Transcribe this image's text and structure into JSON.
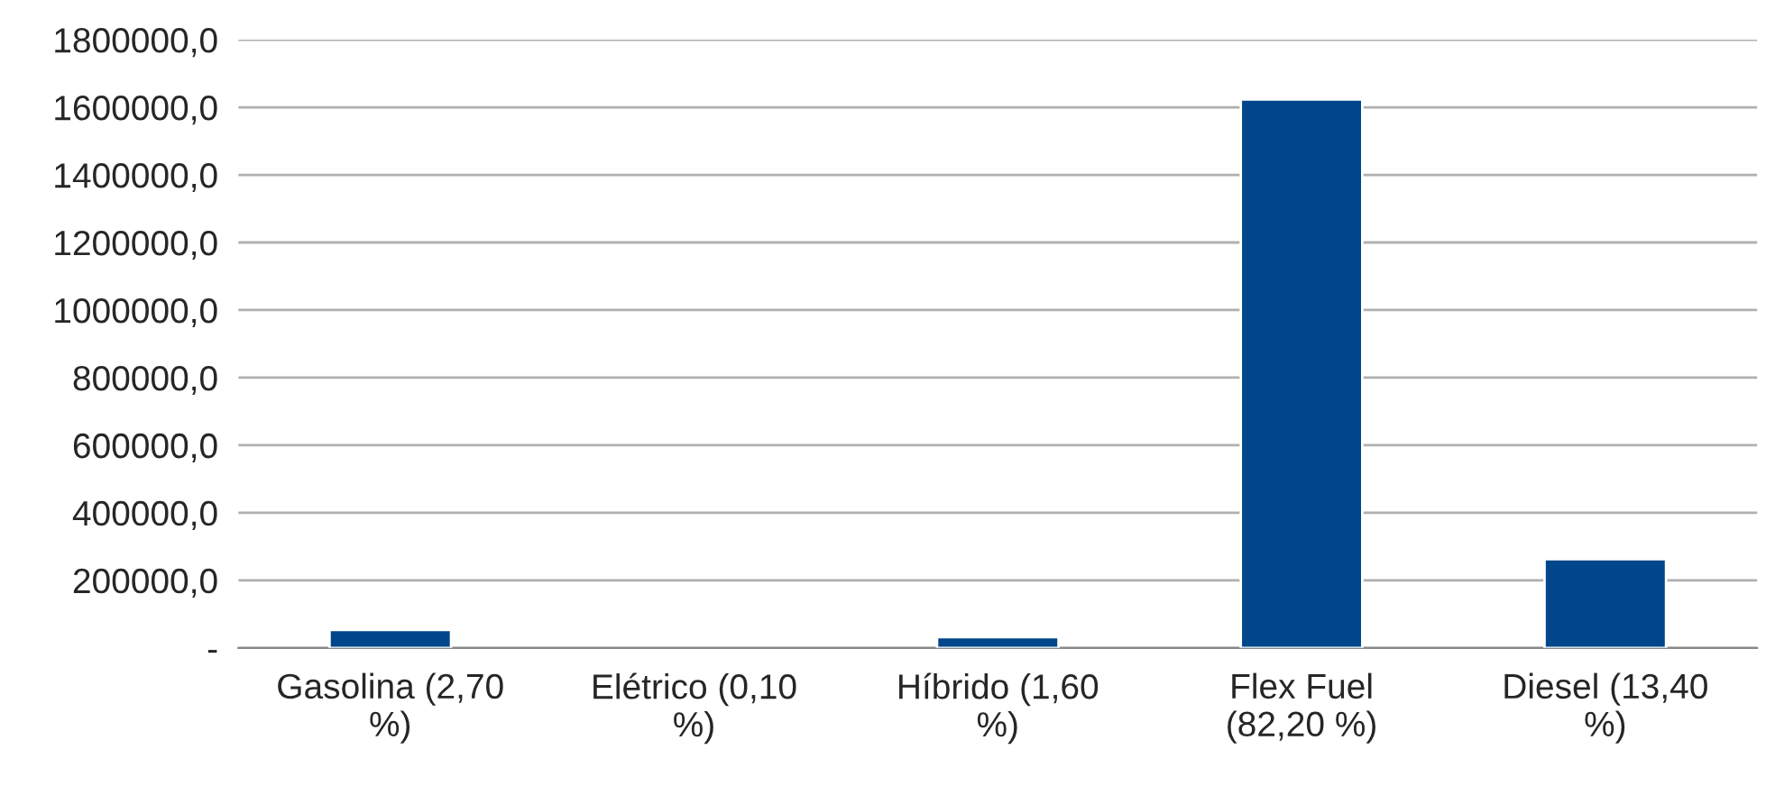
{
  "chart_data": {
    "type": "bar",
    "categories": [
      "Gasolina (2,70\n%)",
      "Elétrico (0,10\n%)",
      "Híbrido (1,60\n%)",
      "Flex Fuel\n(82,20 %)",
      "Diesel (13,40\n%)"
    ],
    "values": [
      53000,
      null,
      32000,
      1623000,
      263000
    ],
    "color": "#00468b",
    "ylim": [
      0,
      1800000
    ],
    "yticks": [
      {
        "value": 0,
        "label": "-"
      },
      {
        "value": 200000,
        "label": "200000,0"
      },
      {
        "value": 400000,
        "label": "400000,0"
      },
      {
        "value": 600000,
        "label": "600000,0"
      },
      {
        "value": 800000,
        "label": "800000,0"
      },
      {
        "value": 1000000,
        "label": "1000000,0"
      },
      {
        "value": 1200000,
        "label": "1200000,0"
      },
      {
        "value": 1400000,
        "label": "1400000,0"
      },
      {
        "value": 1600000,
        "label": "1600000,0"
      },
      {
        "value": 1800000,
        "label": "1800000,0"
      }
    ],
    "grid": "y",
    "legend": false
  }
}
